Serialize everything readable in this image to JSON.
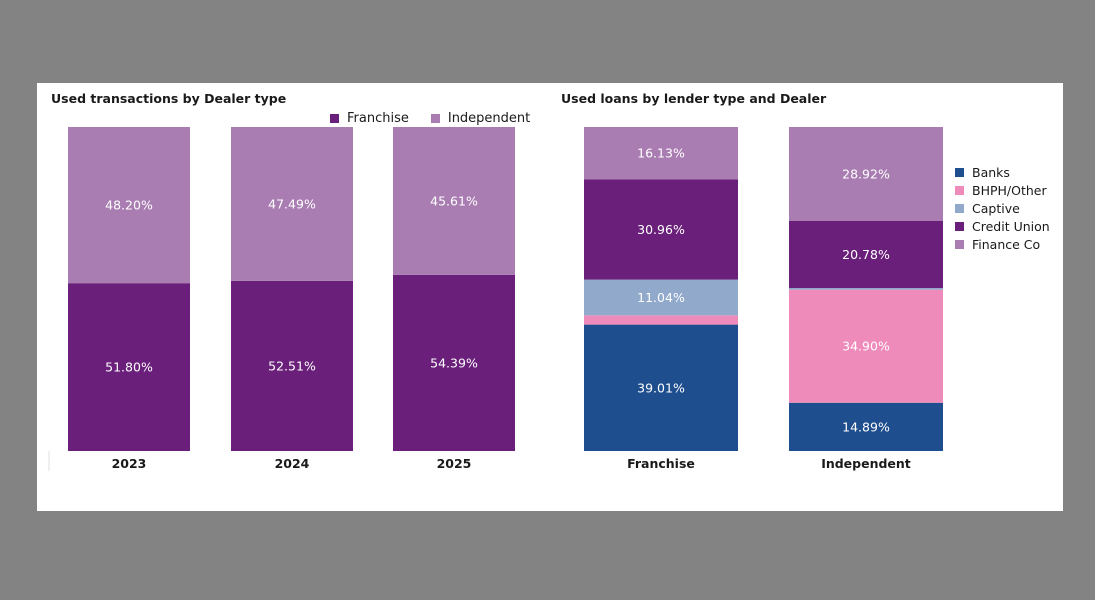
{
  "chart_data": [
    {
      "type": "bar",
      "stacked": true,
      "title": "Used transactions by Dealer type",
      "categories": [
        "2023",
        "2024",
        "2025"
      ],
      "series": [
        {
          "name": "Franchise",
          "color": "#6a1f7a",
          "values": [
            51.8,
            52.51,
            54.39
          ],
          "labels": [
            "51.80%",
            "52.51%",
            "54.39%"
          ]
        },
        {
          "name": "Independent",
          "color": "#a97db2",
          "values": [
            48.2,
            47.49,
            45.61
          ],
          "labels": [
            "48.20%",
            "47.49%",
            "45.61%"
          ]
        }
      ],
      "ylim": [
        0,
        100
      ],
      "legend": "top-right",
      "unit": "%"
    },
    {
      "type": "bar",
      "stacked": true,
      "title": "Used loans by lender type and Dealer",
      "categories": [
        "Franchise",
        "Independent"
      ],
      "series": [
        {
          "name": "Banks",
          "color": "#1f4e8f",
          "values": [
            39.01,
            14.89
          ],
          "labels": [
            "39.01%",
            "14.89%"
          ]
        },
        {
          "name": "BHPH/Other",
          "color": "#ee8bbb",
          "values": [
            2.86,
            34.9
          ],
          "labels": [
            "",
            "34.90%"
          ]
        },
        {
          "name": "Captive",
          "color": "#91a9cb",
          "values": [
            11.04,
            0.51
          ],
          "labels": [
            "11.04%",
            ""
          ]
        },
        {
          "name": "Credit Union",
          "color": "#6a1f7a",
          "values": [
            30.96,
            20.78
          ],
          "labels": [
            "30.96%",
            "20.78%"
          ]
        },
        {
          "name": "Finance Co",
          "color": "#a97db2",
          "values": [
            16.13,
            28.92
          ],
          "labels": [
            "16.13%",
            "28.92%"
          ]
        }
      ],
      "ylim": [
        0,
        100
      ],
      "legend": "right",
      "unit": "%"
    }
  ]
}
